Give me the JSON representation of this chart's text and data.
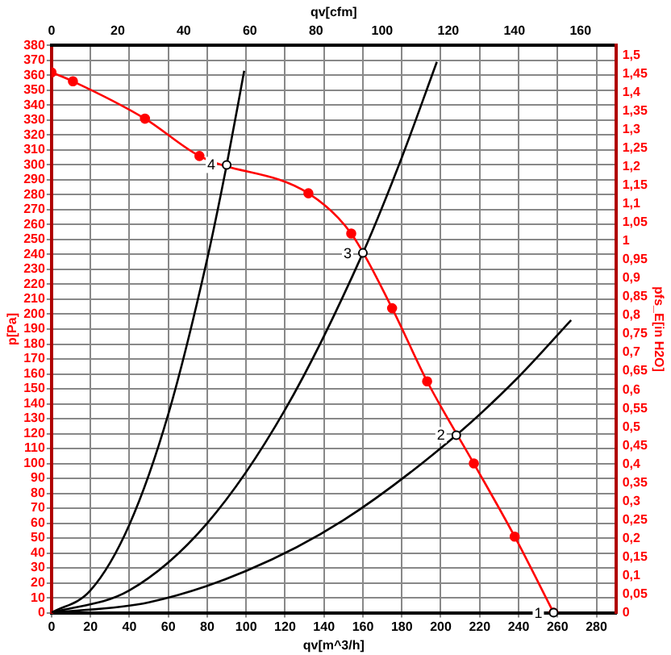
{
  "chart_data": {
    "type": "line",
    "xlabel": "qv[m^3/h]",
    "x2label": "qv[cfm]",
    "ylabel": "p[Pa]",
    "y2label": "pfs_E[in H2O]",
    "xlim": [
      0,
      290
    ],
    "xticks": [
      0,
      20,
      40,
      60,
      80,
      100,
      120,
      140,
      160,
      180,
      200,
      220,
      240,
      260,
      280
    ],
    "x2lim": [
      0,
      170.7
    ],
    "x2ticks": [
      0,
      20,
      40,
      60,
      80,
      100,
      120,
      140,
      160
    ],
    "ylim": [
      0,
      380
    ],
    "yticks": [
      0,
      10,
      20,
      30,
      40,
      50,
      60,
      70,
      80,
      90,
      100,
      110,
      120,
      130,
      140,
      150,
      160,
      170,
      180,
      190,
      200,
      210,
      220,
      230,
      240,
      250,
      260,
      270,
      280,
      290,
      300,
      310,
      320,
      330,
      340,
      350,
      360,
      370,
      380
    ],
    "y2lim": [
      0,
      1.526
    ],
    "y2ticks": [
      {
        "value": 0,
        "label": "0"
      },
      {
        "value": 0.05,
        "label": "0,05"
      },
      {
        "value": 0.1,
        "label": "0,1"
      },
      {
        "value": 0.15,
        "label": "0,15"
      },
      {
        "value": 0.2,
        "label": "0,2"
      },
      {
        "value": 0.25,
        "label": "0,25"
      },
      {
        "value": 0.3,
        "label": "0,3"
      },
      {
        "value": 0.35,
        "label": "0,35"
      },
      {
        "value": 0.4,
        "label": "0,4"
      },
      {
        "value": 0.45,
        "label": "0,45"
      },
      {
        "value": 0.5,
        "label": "0,5"
      },
      {
        "value": 0.55,
        "label": "0,55"
      },
      {
        "value": 0.6,
        "label": "0,6"
      },
      {
        "value": 0.65,
        "label": "0,65"
      },
      {
        "value": 0.7,
        "label": "0,7"
      },
      {
        "value": 0.75,
        "label": "0,75"
      },
      {
        "value": 0.8,
        "label": "0,8"
      },
      {
        "value": 0.85,
        "label": "0,85"
      },
      {
        "value": 0.9,
        "label": "0,9"
      },
      {
        "value": 0.95,
        "label": "0,95"
      },
      {
        "value": 1,
        "label": "1"
      },
      {
        "value": 1.05,
        "label": "1,05"
      },
      {
        "value": 1.1,
        "label": "1,1"
      },
      {
        "value": 1.15,
        "label": "1,15"
      },
      {
        "value": 1.2,
        "label": "1,2"
      },
      {
        "value": 1.25,
        "label": "1,25"
      },
      {
        "value": 1.3,
        "label": "1,3"
      },
      {
        "value": 1.35,
        "label": "1,35"
      },
      {
        "value": 1.4,
        "label": "1,4"
      },
      {
        "value": 1.45,
        "label": "1,45"
      },
      {
        "value": 1.5,
        "label": "1,5"
      }
    ],
    "grid": true,
    "line_style": "solid",
    "series": [
      {
        "color": "#ff0000",
        "marker": "circle",
        "x": [
          0,
          11,
          48,
          76,
          132,
          154,
          175,
          193,
          217,
          238,
          258
        ],
        "values": [
          362,
          356,
          331,
          306,
          281,
          254,
          204,
          155,
          100,
          51,
          0
        ]
      },
      {
        "color": "#000000",
        "marker": "none",
        "x": [
          0,
          20,
          40,
          60,
          80,
          90,
          99
        ],
        "values": [
          0,
          15,
          59,
          133,
          237,
          300,
          363
        ]
      },
      {
        "color": "#000000",
        "marker": "none",
        "x": [
          0,
          40,
          80,
          120,
          160,
          180,
          198
        ],
        "values": [
          0,
          15,
          60,
          136,
          241,
          305,
          369
        ]
      },
      {
        "color": "#000000",
        "marker": "none",
        "x": [
          0,
          50,
          100,
          150,
          208,
          240,
          267
        ],
        "values": [
          0,
          7,
          28,
          62,
          119,
          158,
          196
        ]
      }
    ],
    "annotations": [
      {
        "text": "4",
        "x": 90,
        "y": 300
      },
      {
        "text": "3",
        "x": 160,
        "y": 241
      },
      {
        "text": "2",
        "x": 208,
        "y": 119
      },
      {
        "text": "1",
        "x": 258,
        "y": 0
      }
    ]
  }
}
